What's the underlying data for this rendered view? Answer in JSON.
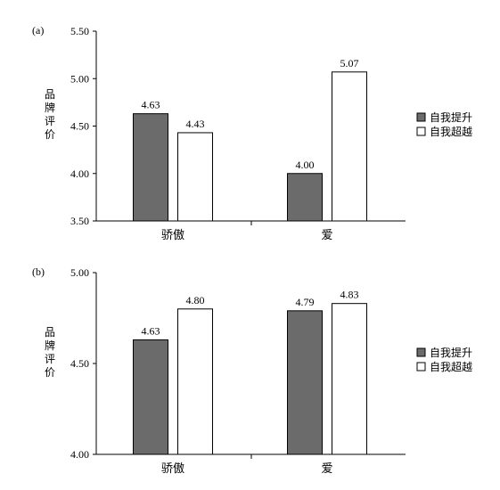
{
  "chart_data": [
    {
      "type": "bar",
      "panel_label": "(a)",
      "ylabel": "品牌评价",
      "ylim": [
        3.5,
        5.5
      ],
      "yticks": [
        "3.50",
        "4.00",
        "4.50",
        "5.00",
        "5.50"
      ],
      "categories": [
        "骄傲",
        "爱"
      ],
      "series": [
        {
          "name": "自我提升",
          "color": "#6b6b6b",
          "values": [
            4.63,
            4.0
          ],
          "labels": [
            "4.63",
            "4.00"
          ]
        },
        {
          "name": "自我超越",
          "color": "#ffffff",
          "values": [
            4.43,
            5.07
          ],
          "labels": [
            "4.43",
            "5.07"
          ]
        }
      ],
      "legend": "right",
      "grid": false
    },
    {
      "type": "bar",
      "panel_label": "(b)",
      "ylabel": "品牌评价",
      "ylim": [
        4.0,
        5.0
      ],
      "yticks": [
        "4.00",
        "4.50",
        "5.00"
      ],
      "categories": [
        "骄傲",
        "爱"
      ],
      "series": [
        {
          "name": "自我提升",
          "color": "#6b6b6b",
          "values": [
            4.63,
            4.79
          ],
          "labels": [
            "4.63",
            "4.79"
          ]
        },
        {
          "name": "自我超越",
          "color": "#ffffff",
          "values": [
            4.8,
            4.83
          ],
          "labels": [
            "4.80",
            "4.83"
          ]
        }
      ],
      "legend": "right",
      "grid": false
    }
  ]
}
